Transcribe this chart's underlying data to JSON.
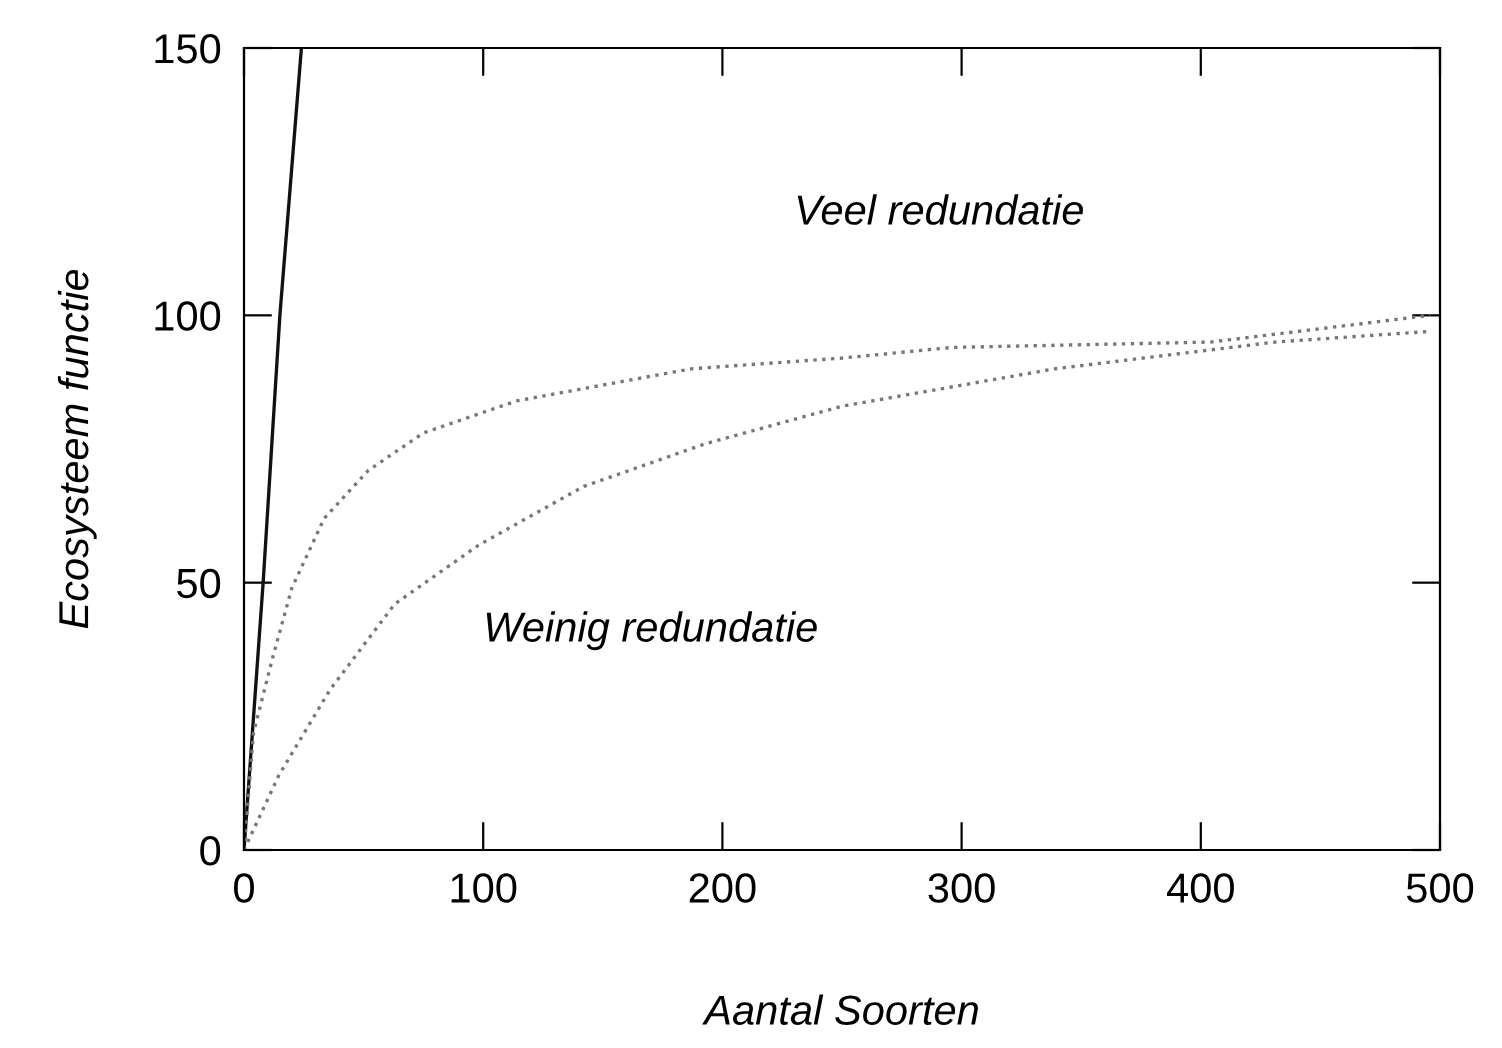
{
  "chart_data": {
    "type": "line",
    "xlabel": "Aantal Soorten",
    "ylabel": "Ecosysteem functie",
    "xlim": [
      0,
      500
    ],
    "xticks": [
      0,
      100,
      200,
      300,
      400,
      500
    ],
    "ylim": [
      0,
      150
    ],
    "yticks": [
      0,
      50,
      100,
      150
    ],
    "grid": false,
    "legend": false,
    "marker": "none",
    "annotations": [
      "Veel redundatie",
      "Weinig redundatie"
    ],
    "series": [
      {
        "color": "#111111",
        "line_style": "solid",
        "x": [
          0,
          8,
          15,
          24
        ],
        "values": [
          0,
          50,
          100,
          150
        ]
      },
      {
        "color": "#777777",
        "line_style": "dotted",
        "x": [
          0,
          4,
          12,
          20,
          33.5,
          52,
          75,
          114,
          187,
          250,
          296,
          404,
          496
        ],
        "values": [
          0,
          22,
          36,
          49,
          62,
          71,
          78,
          84,
          90,
          92,
          94,
          95,
          100
        ]
      },
      {
        "color": "#777777",
        "line_style": "dotted",
        "x": [
          0,
          14.6,
          36,
          63,
          98,
          142,
          193,
          250,
          339,
          431,
          496
        ],
        "values": [
          0,
          14,
          30,
          46,
          57,
          68,
          76,
          83,
          90,
          95,
          97
        ]
      }
    ]
  }
}
